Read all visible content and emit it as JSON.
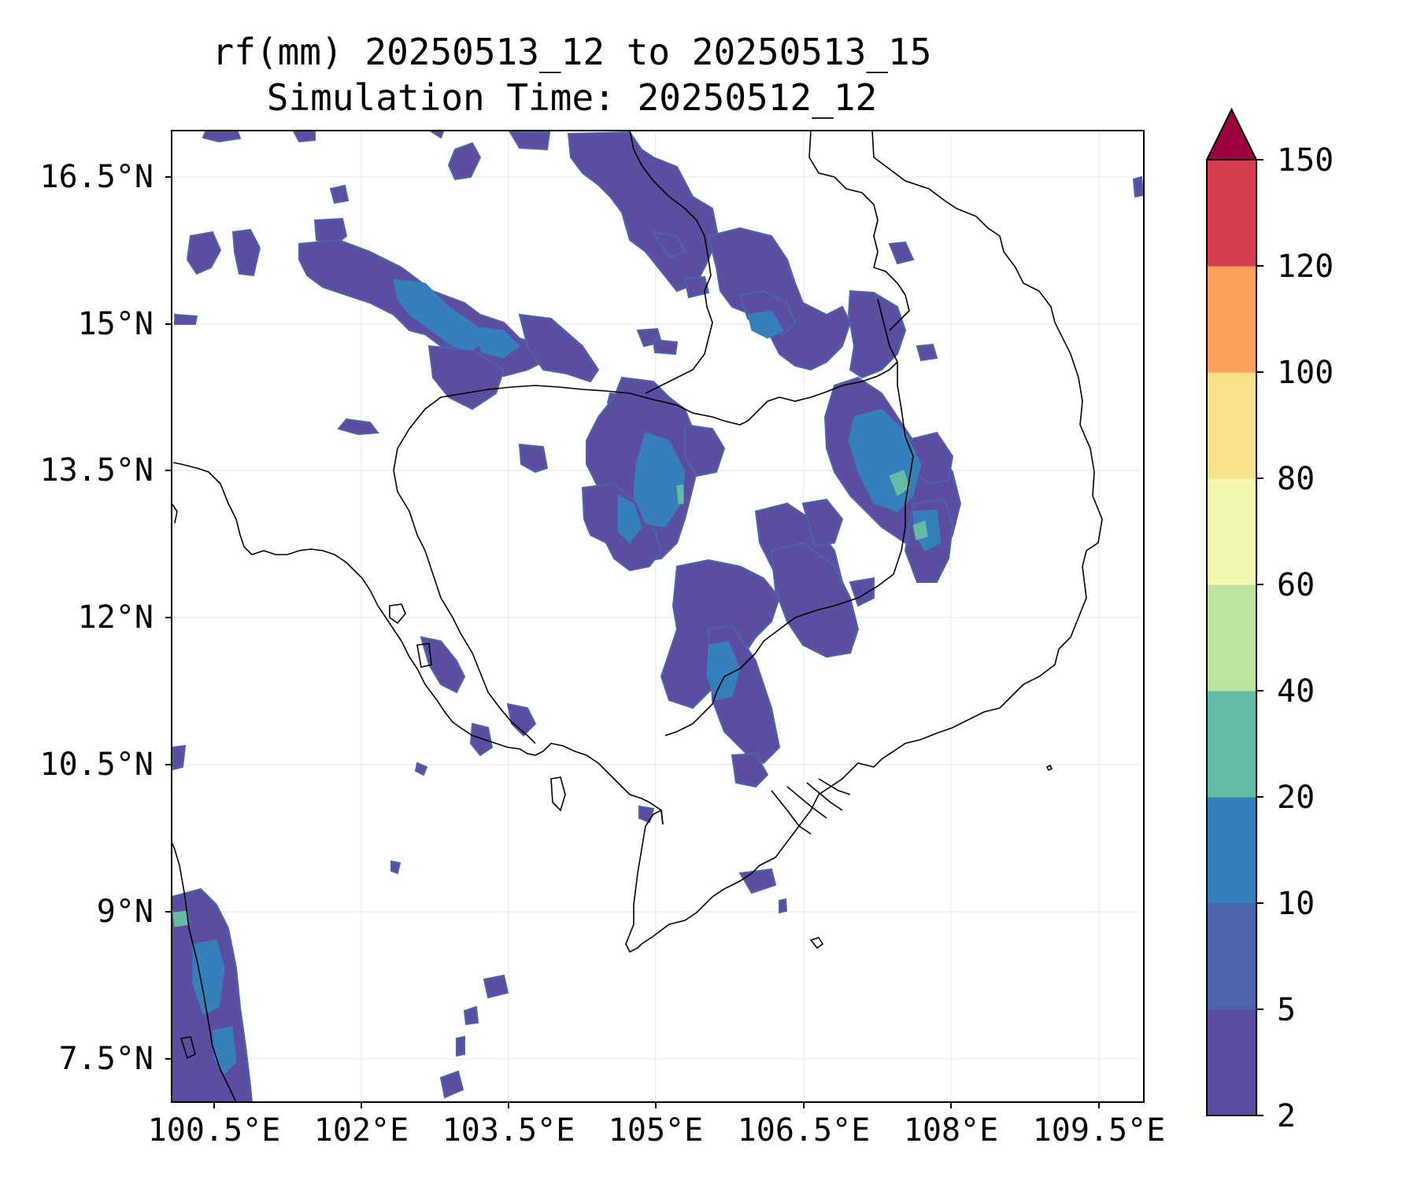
{
  "title": {
    "line1": "rf(mm) 20250513_12 to 20250513_15",
    "line2": "Simulation Time: 20250512_12"
  },
  "map": {
    "lon_range": [
      100.0,
      110.0
    ],
    "lat_range": [
      7.0,
      16.9
    ],
    "x_ticks": [
      "100.5°E",
      "102°E",
      "103.5°E",
      "105°E",
      "106.5°E",
      "108°E",
      "109.5°E"
    ],
    "y_ticks": [
      "16.5°N",
      "15°N",
      "13.5°N",
      "12°N",
      "10.5°N",
      "9°N",
      "7.5°N"
    ],
    "gridlines": true,
    "coastlines": true,
    "country_borders": true
  },
  "colorbar": {
    "levels": [
      "2",
      "5",
      "10",
      "20",
      "40",
      "60",
      "80",
      "100",
      "120",
      "150"
    ],
    "colors": [
      "#5b4ea1",
      "#4b64ac",
      "#3580bb",
      "#63bca6",
      "#bde3a1",
      "#f2f9ae",
      "#fbe08a",
      "#faa05b",
      "#d53e4f",
      "#9e0142"
    ],
    "extend": "max"
  }
}
